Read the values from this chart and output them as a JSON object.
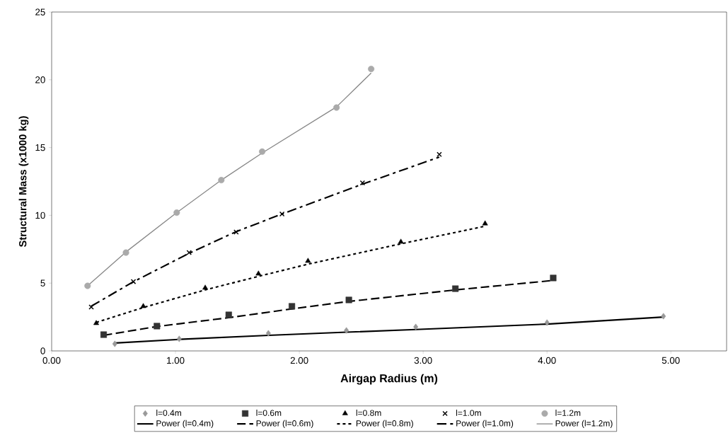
{
  "chart_data": {
    "type": "scatter",
    "xlabel": "Airgap Radius (m)",
    "ylabel": "Structural Mass (x1000 kg)",
    "xlim": [
      0,
      5.45
    ],
    "ylim": [
      0,
      25
    ],
    "xticks": [
      {
        "value": 0,
        "label": "0.00"
      },
      {
        "value": 1,
        "label": "1.00"
      },
      {
        "value": 2,
        "label": "2.00"
      },
      {
        "value": 3,
        "label": "3.00"
      },
      {
        "value": 4,
        "label": "4.00"
      },
      {
        "value": 5,
        "label": "5.00"
      }
    ],
    "yticks": [
      0,
      5,
      10,
      15,
      20,
      25
    ],
    "grid": false,
    "legend": "bottom",
    "series": [
      {
        "name": "l=0.4m",
        "marker": "diamond",
        "color": "#999999",
        "x": [
          0.51,
          1.03,
          1.75,
          2.38,
          2.94,
          4.0,
          4.94
        ],
        "values": [
          0.52,
          0.89,
          1.3,
          1.51,
          1.77,
          2.09,
          2.56
        ]
      },
      {
        "name": "l=0.6m",
        "marker": "square",
        "color": "#333333",
        "x": [
          0.42,
          0.85,
          1.43,
          1.94,
          2.4,
          3.26,
          4.05
        ],
        "values": [
          1.2,
          1.83,
          2.66,
          3.29,
          3.76,
          4.59,
          5.38
        ]
      },
      {
        "name": "l=0.8m",
        "marker": "triangle",
        "color": "#000000",
        "x": [
          0.36,
          0.74,
          1.24,
          1.67,
          2.07,
          2.82,
          3.5
        ],
        "values": [
          2.04,
          3.29,
          4.65,
          5.69,
          6.63,
          8.04,
          9.39
        ]
      },
      {
        "name": "l=1.0m",
        "marker": "cross",
        "color": "#000000",
        "x": [
          0.32,
          0.66,
          1.11,
          1.49,
          1.86,
          2.51,
          3.13
        ],
        "values": [
          3.24,
          5.11,
          7.25,
          8.77,
          10.1,
          12.4,
          14.5
        ]
      },
      {
        "name": "l=1.2m",
        "marker": "circle",
        "color": "#aaaaaa",
        "x": [
          0.29,
          0.6,
          1.01,
          1.37,
          1.7,
          2.3,
          2.58
        ],
        "values": [
          4.8,
          7.25,
          10.2,
          12.6,
          14.7,
          17.95,
          20.8
        ]
      },
      {
        "name": "Power (l=0.4m)",
        "type": "line",
        "marker": "none",
        "line_style": "solid",
        "color": "#000000",
        "x": [
          0.51,
          1.03,
          1.75,
          2.38,
          2.94,
          4.0,
          4.94
        ],
        "values": [
          0.58,
          0.85,
          1.15,
          1.38,
          1.58,
          1.98,
          2.5
        ]
      },
      {
        "name": "Power (l=0.6m)",
        "type": "line",
        "marker": "none",
        "line_style": "dashed",
        "color": "#000000",
        "x": [
          0.42,
          0.85,
          1.43,
          1.94,
          2.4,
          3.26,
          4.05
        ],
        "values": [
          1.15,
          1.8,
          2.45,
          3.1,
          3.65,
          4.5,
          5.2
        ]
      },
      {
        "name": "Power (l=0.8m)",
        "type": "line",
        "marker": "none",
        "line_style": "dotted",
        "color": "#000000",
        "x": [
          0.36,
          0.74,
          1.24,
          1.67,
          2.07,
          2.82,
          3.5
        ],
        "values": [
          2.1,
          3.2,
          4.5,
          5.5,
          6.4,
          7.9,
          9.2
        ]
      },
      {
        "name": "Power (l=1.0m)",
        "type": "line",
        "marker": "none",
        "line_style": "dashdot",
        "color": "#000000",
        "x": [
          0.32,
          0.66,
          1.11,
          1.49,
          1.86,
          2.51,
          3.13
        ],
        "values": [
          3.3,
          5.1,
          7.2,
          8.8,
          10.1,
          12.3,
          14.3
        ]
      },
      {
        "name": "Power (l=1.2m)",
        "type": "line",
        "marker": "none",
        "line_style": "solid",
        "color": "#888888",
        "x": [
          0.29,
          0.6,
          1.01,
          1.37,
          1.7,
          2.3,
          2.58
        ],
        "values": [
          4.8,
          7.3,
          10.2,
          12.6,
          14.6,
          18.0,
          20.5
        ]
      }
    ]
  }
}
